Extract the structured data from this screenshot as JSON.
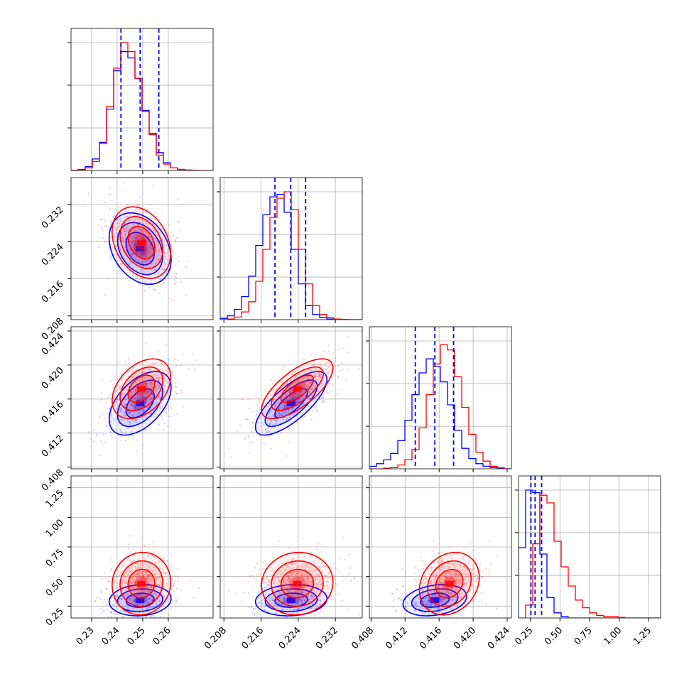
{
  "chart_data": {
    "type": "corner",
    "title": "",
    "grid": true,
    "parameters": [
      {
        "range": [
          0.222,
          0.2775
        ],
        "ticks": [
          0.23,
          0.24,
          0.25,
          0.26
        ],
        "tick_labels": [
          "0.23",
          "0.24",
          "0.25",
          "0.26"
        ]
      },
      {
        "range": [
          0.2072,
          0.2378
        ],
        "ticks": [
          0.208,
          0.216,
          0.224,
          0.232
        ],
        "tick_labels": [
          "0.208",
          "0.216",
          "0.224",
          "0.232"
        ]
      },
      {
        "range": [
          0.4078,
          0.4245
        ],
        "ticks": [
          0.408,
          0.412,
          0.416,
          0.42,
          0.424
        ],
        "tick_labels": [
          "0.408",
          "0.412",
          "0.416",
          "0.420",
          "0.424"
        ]
      },
      {
        "range": [
          0.15,
          1.35
        ],
        "ticks": [
          0.25,
          0.5,
          0.75,
          1.0,
          1.25
        ],
        "tick_labels": [
          "0.25",
          "0.50",
          "0.75",
          "1.00",
          "1.25"
        ]
      }
    ],
    "series": [
      {
        "color": "#0000ff",
        "means": [
          0.249,
          0.2225,
          0.4155,
          0.3
        ],
        "sigmas": [
          0.0055,
          0.0035,
          0.0017,
          0.06
        ],
        "quantiles": [
          [
            0.2415,
            0.249,
            0.2563
          ],
          [
            0.219,
            0.2224,
            0.2256
          ],
          [
            0.4132,
            0.4155,
            0.4177
          ],
          [
            0.255,
            0.29,
            0.345
          ]
        ],
        "correlations": {
          "0-1": -0.3,
          "0-2": 0.5,
          "1-2": 0.75,
          "0-3": 0.1,
          "1-3": 0.1,
          "2-3": 0.25
        }
      },
      {
        "color": "#ff0000",
        "means": [
          0.2495,
          0.2238,
          0.4172,
          0.44
        ],
        "sigmas": [
          0.0052,
          0.0035,
          0.0016,
          0.12
        ],
        "quantiles": [],
        "correlations": {
          "0-1": -0.3,
          "0-2": 0.4,
          "1-2": 0.7,
          "0-3": 0.05,
          "1-3": 0.05,
          "2-3": 0.2
        }
      }
    ],
    "histograms": {
      "bins": 20,
      "series": [
        {
          "color": "#0000ff",
          "param_0": [
            0.002,
            0.008,
            0.03,
            0.09,
            0.22,
            0.48,
            0.78,
            0.93,
            0.88,
            0.72,
            0.47,
            0.29,
            0.14,
            0.06,
            0.02,
            0.008,
            0.003,
            0.001,
            0.0,
            0.0
          ],
          "param_1": [
            0.01,
            0.03,
            0.08,
            0.18,
            0.34,
            0.58,
            0.82,
            0.96,
            0.98,
            0.84,
            0.55,
            0.28,
            0.11,
            0.04,
            0.015,
            0.005,
            0.0,
            0.0,
            0.0,
            0.0
          ],
          "param_2": [
            0.02,
            0.04,
            0.07,
            0.12,
            0.22,
            0.38,
            0.58,
            0.75,
            0.86,
            0.8,
            0.68,
            0.5,
            0.3,
            0.16,
            0.08,
            0.04,
            0.02,
            0.01,
            0.005,
            0.0
          ],
          "param_3": [
            0.55,
            1.0,
            0.98,
            0.5,
            0.16,
            0.04,
            0.01,
            0.0,
            0.0,
            0.0,
            0.0,
            0.0,
            0.0,
            0.0,
            0.0,
            0.0,
            0.0,
            0.0,
            0.0,
            0.0
          ]
        },
        {
          "color": "#ff0000",
          "param_0": [
            0.001,
            0.004,
            0.02,
            0.07,
            0.21,
            0.5,
            0.8,
            1.0,
            0.93,
            0.72,
            0.46,
            0.28,
            0.12,
            0.05,
            0.02,
            0.008,
            0.003,
            0.001,
            0.0,
            0.0
          ],
          "param_1": [
            0.0,
            0.005,
            0.02,
            0.06,
            0.14,
            0.3,
            0.55,
            0.8,
            0.95,
            1.0,
            0.86,
            0.55,
            0.28,
            0.11,
            0.04,
            0.015,
            0.005,
            0.002,
            0.0,
            0.0
          ],
          "param_2": [
            0.0,
            0.0,
            0.005,
            0.01,
            0.03,
            0.07,
            0.15,
            0.32,
            0.58,
            0.82,
            0.97,
            0.93,
            0.72,
            0.48,
            0.27,
            0.13,
            0.06,
            0.02,
            0.008,
            0.0
          ],
          "param_3": [
            0.0,
            0.1,
            0.58,
            0.96,
            0.9,
            0.6,
            0.4,
            0.25,
            0.14,
            0.08,
            0.04,
            0.02,
            0.01,
            0.01,
            0.005,
            0.0,
            0.0,
            0.0,
            0.0,
            0.0
          ]
        }
      ]
    }
  }
}
